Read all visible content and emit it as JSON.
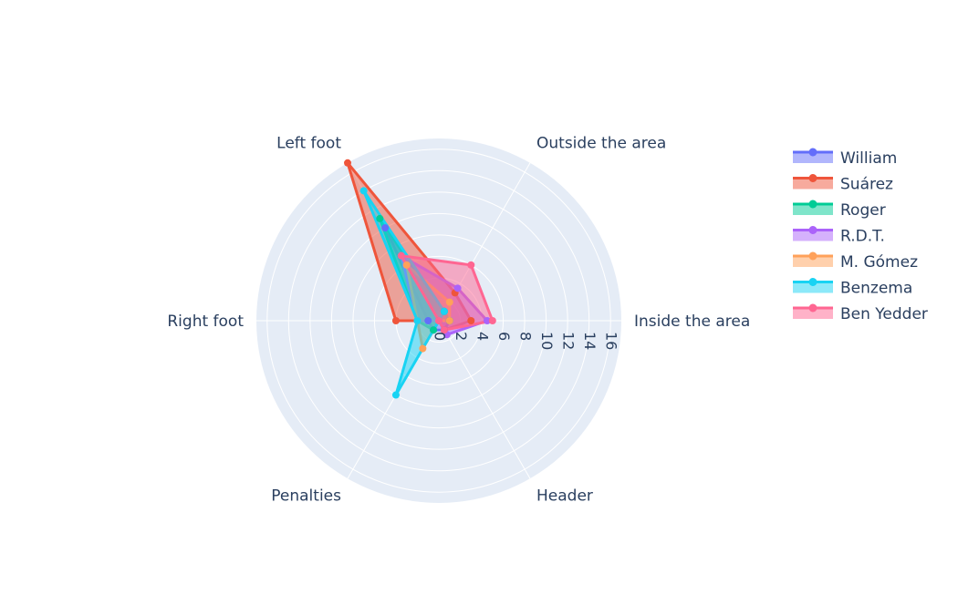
{
  "chart_data": {
    "type": "radar",
    "title": "",
    "axes": [
      "Inside the area",
      "Outside the area",
      "Left foot",
      "Right foot",
      "Penalties",
      "Header"
    ],
    "radial_range": [
      0,
      17
    ],
    "radial_ticks": [
      "0",
      "2",
      "4",
      "6",
      "8",
      "10",
      "12",
      "14",
      "16"
    ],
    "grid": true,
    "legend_position": "right",
    "series": [
      {
        "name": "William",
        "color": "#636efa",
        "values": [
          1,
          1,
          10,
          1,
          1,
          1
        ]
      },
      {
        "name": "Suárez",
        "color": "#ef553b",
        "values": [
          3,
          3,
          17,
          4,
          0,
          1
        ]
      },
      {
        "name": "Roger",
        "color": "#00cc96",
        "values": [
          1,
          1,
          11,
          2,
          1,
          0
        ]
      },
      {
        "name": "R.D.T.",
        "color": "#ab63fa",
        "values": [
          4.5,
          3.5,
          7,
          2,
          0,
          1.5
        ]
      },
      {
        "name": "M. Gómez",
        "color": "#ffa15a",
        "values": [
          1,
          2,
          6,
          2,
          3,
          0
        ]
      },
      {
        "name": "Benzema",
        "color": "#19d3f3",
        "values": [
          0,
          1,
          14,
          2,
          8,
          0
        ]
      },
      {
        "name": "Ben Yedder",
        "color": "#ff6692",
        "values": [
          5,
          6,
          7,
          0,
          0,
          1
        ]
      }
    ]
  }
}
